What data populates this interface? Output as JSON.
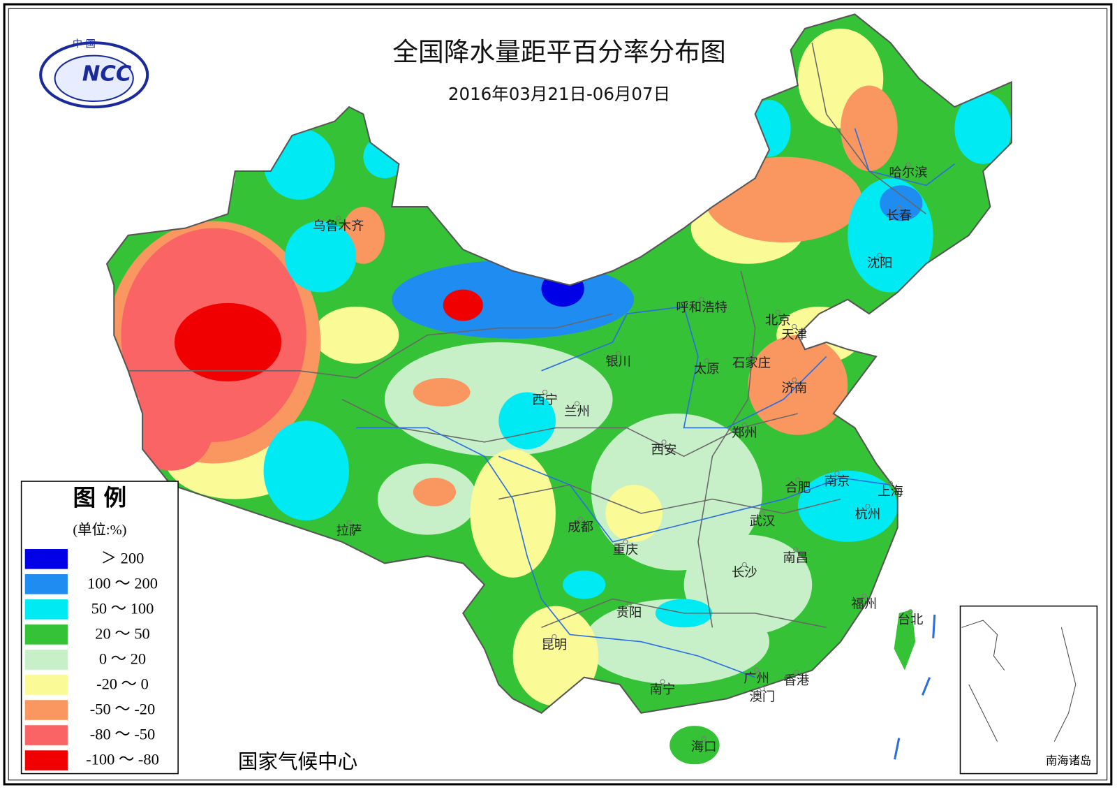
{
  "title": "全国降水量距平百分率分布图",
  "subtitle": "2016年03月21日-06月07日",
  "logo": {
    "top": "中 国",
    "mark": "NCC"
  },
  "legend": {
    "title": "图 例",
    "unit": "(单位:%)",
    "items": [
      {
        "label": "＞ 200",
        "color": "#0000e6"
      },
      {
        "label": "100 ～ 200",
        "color": "#1e8cf0"
      },
      {
        "label": "50 ～ 100",
        "color": "#00eaf4"
      },
      {
        "label": "20 ～ 50",
        "color": "#36c236"
      },
      {
        "label": "0 ～ 20",
        "color": "#c8f0c8"
      },
      {
        "label": "-20 ～ 0",
        "color": "#fafa96"
      },
      {
        "label": "-50 ～ -20",
        "color": "#fa9660"
      },
      {
        "label": "-80 ～ -50",
        "color": "#fa6464"
      },
      {
        "label": "-100 ～ -80",
        "color": "#f00000"
      }
    ]
  },
  "cities": [
    "乌鲁木齐",
    "哈尔滨",
    "长春",
    "沈阳",
    "呼和浩特",
    "北京",
    "天津",
    "银川",
    "太原",
    "石家庄",
    "济南",
    "西宁",
    "兰州",
    "郑州",
    "西安",
    "南京",
    "合肥",
    "上海",
    "杭州",
    "拉萨",
    "成都",
    "武汉",
    "重庆",
    "南昌",
    "长沙",
    "福州",
    "台北",
    "贵阳",
    "昆明",
    "南宁",
    "广州",
    "香港",
    "澳门",
    "海口"
  ],
  "footer": "国家气候中心",
  "inset_label": "南海诸岛"
}
